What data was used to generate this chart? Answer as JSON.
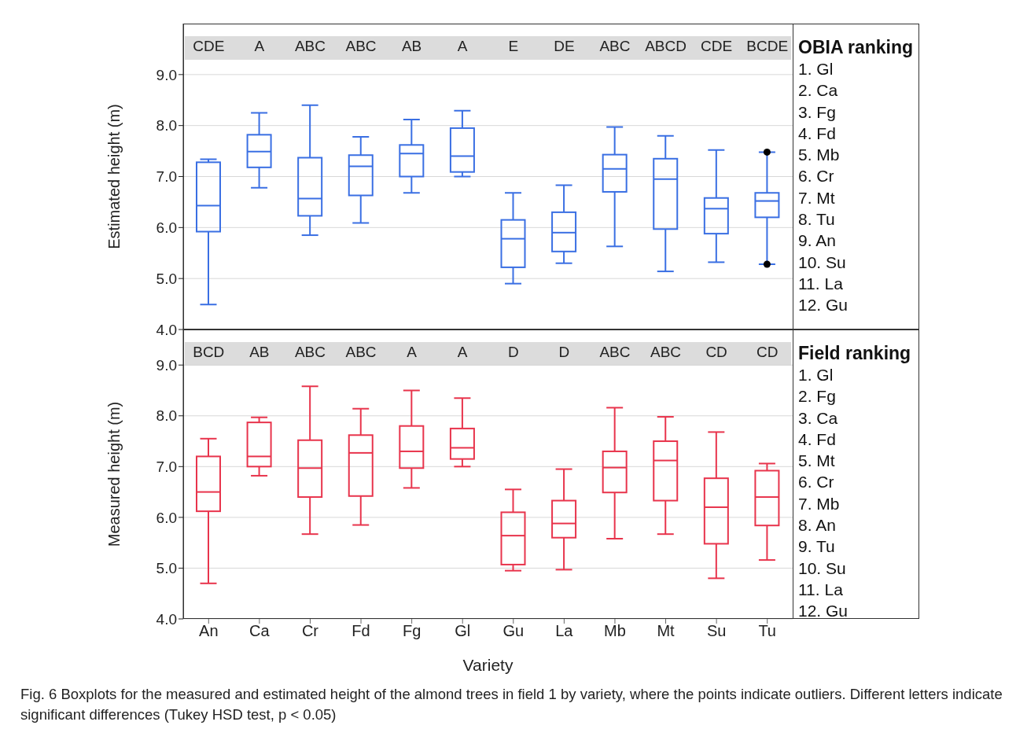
{
  "chart_data": [
    {
      "type": "box",
      "ylabel": "Estimated height (m)",
      "color": "#3a6fe3",
      "tick_labels": "y",
      "grid": "y",
      "ylim": [
        4.0,
        10.0
      ],
      "yticks": [
        {
          "value": 4,
          "label": "4.0"
        },
        {
          "value": 5,
          "label": "5.0"
        },
        {
          "value": 6,
          "label": "6.0"
        },
        {
          "value": 7,
          "label": "7.0"
        },
        {
          "value": 8,
          "label": "8.0"
        },
        {
          "value": 9,
          "label": "9.0"
        }
      ],
      "boxes": [
        {
          "low": 4.49,
          "q1": 5.92,
          "median": 6.43,
          "q3": 7.28,
          "high": 7.34
        },
        {
          "low": 6.78,
          "q1": 7.18,
          "median": 7.49,
          "q3": 7.82,
          "high": 8.25
        },
        {
          "low": 5.85,
          "q1": 6.23,
          "median": 6.57,
          "q3": 7.37,
          "high": 8.4
        },
        {
          "low": 6.09,
          "q1": 6.63,
          "median": 7.2,
          "q3": 7.42,
          "high": 7.78
        },
        {
          "low": 6.68,
          "q1": 7.0,
          "median": 7.45,
          "q3": 7.62,
          "high": 8.12
        },
        {
          "low": 7.0,
          "q1": 7.09,
          "median": 7.4,
          "q3": 7.95,
          "high": 8.29
        },
        {
          "low": 4.9,
          "q1": 5.22,
          "median": 5.78,
          "q3": 6.15,
          "high": 6.68
        },
        {
          "low": 5.3,
          "q1": 5.53,
          "median": 5.9,
          "q3": 6.3,
          "high": 6.83
        },
        {
          "low": 5.63,
          "q1": 6.7,
          "median": 7.15,
          "q3": 7.43,
          "high": 7.97
        },
        {
          "low": 5.14,
          "q1": 5.97,
          "median": 6.95,
          "q3": 7.35,
          "high": 7.8
        },
        {
          "low": 5.32,
          "q1": 5.88,
          "median": 6.37,
          "q3": 6.58,
          "high": 7.52
        },
        {
          "low": 5.28,
          "q1": 6.2,
          "median": 6.52,
          "q3": 6.68,
          "high": 7.48,
          "outliers": [
            7.48,
            5.28
          ]
        }
      ],
      "legend_title": "OBIA ranking",
      "annotations": [
        "CDE",
        "A",
        "ABC",
        "ABC",
        "AB",
        "A",
        "E",
        "DE",
        "ABC",
        "ABCD",
        "CDE",
        "BCDE",
        "1. Gl",
        "2. Ca",
        "3. Fg",
        "4. Fd",
        "5. Mb",
        "6. Cr",
        "7. Mt",
        "8. Tu",
        "9. An",
        "10. Su",
        "11. La",
        "12. Gu"
      ]
    },
    {
      "type": "box",
      "ylabel": "Measured height (m)",
      "xlabel": "Variety",
      "color": "#e8344c",
      "categories": [
        "An",
        "Ca",
        "Cr",
        "Fd",
        "Fg",
        "Gl",
        "Gu",
        "La",
        "Mb",
        "Mt",
        "Su",
        "Tu"
      ],
      "grid": "y",
      "ylim": [
        4.0,
        9.7
      ],
      "yticks": [
        {
          "value": 4,
          "label": "4.0"
        },
        {
          "value": 5,
          "label": "5.0"
        },
        {
          "value": 6,
          "label": "6.0"
        },
        {
          "value": 7,
          "label": "7.0"
        },
        {
          "value": 8,
          "label": "8.0"
        },
        {
          "value": 9,
          "label": "9.0"
        }
      ],
      "boxes": [
        {
          "low": 4.7,
          "q1": 6.12,
          "median": 6.5,
          "q3": 7.2,
          "high": 7.55
        },
        {
          "low": 6.82,
          "q1": 7.0,
          "median": 7.2,
          "q3": 7.87,
          "high": 7.97
        },
        {
          "low": 5.67,
          "q1": 6.4,
          "median": 6.97,
          "q3": 7.52,
          "high": 8.58
        },
        {
          "low": 5.85,
          "q1": 6.42,
          "median": 7.27,
          "q3": 7.62,
          "high": 8.14
        },
        {
          "low": 6.58,
          "q1": 6.97,
          "median": 7.3,
          "q3": 7.8,
          "high": 8.5
        },
        {
          "low": 7.0,
          "q1": 7.15,
          "median": 7.37,
          "q3": 7.75,
          "high": 8.35
        },
        {
          "low": 4.95,
          "q1": 5.07,
          "median": 5.64,
          "q3": 6.1,
          "high": 6.55
        },
        {
          "low": 4.97,
          "q1": 5.6,
          "median": 5.88,
          "q3": 6.33,
          "high": 6.95
        },
        {
          "low": 5.58,
          "q1": 6.49,
          "median": 6.98,
          "q3": 7.3,
          "high": 8.16
        },
        {
          "low": 5.67,
          "q1": 6.33,
          "median": 7.12,
          "q3": 7.5,
          "high": 7.98
        },
        {
          "low": 4.8,
          "q1": 5.48,
          "median": 6.2,
          "q3": 6.77,
          "high": 7.68
        },
        {
          "low": 5.16,
          "q1": 5.84,
          "median": 6.4,
          "q3": 6.92,
          "high": 7.06
        }
      ],
      "legend_title": "Field ranking",
      "annotations": [
        "BCD",
        "AB",
        "ABC",
        "ABC",
        "A",
        "A",
        "D",
        "D",
        "ABC",
        "ABC",
        "CD",
        "CD",
        "1. Gl",
        "2. Fg",
        "3. Ca",
        "4. Fd",
        "5. Mt",
        "6. Cr",
        "7. Mb",
        "8. An",
        "9. Tu",
        "10. Su",
        "11. La",
        "12. Gu"
      ]
    },
    {
      "type": "other",
      "annotations": [
        "Fig. 6 Boxplots for the measured and estimated height of the almond trees in field 1 by variety, where the points indicate outliers. Different letters indicate significant differences (Tukey HSD test, p < 0.05)"
      ]
    }
  ]
}
